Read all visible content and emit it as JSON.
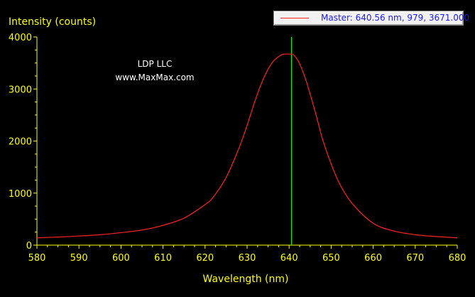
{
  "chart_data": {
    "type": "line",
    "ylabel": "Intensity (counts)",
    "xlabel": "Wavelength (nm)",
    "xlim": [
      580,
      680
    ],
    "ylim": [
      0,
      4000
    ],
    "x_ticks": [
      580,
      590,
      600,
      610,
      620,
      630,
      640,
      650,
      660,
      670,
      680
    ],
    "y_ticks": [
      0,
      1000,
      2000,
      3000,
      4000
    ],
    "annotations": [
      "LDP LLC",
      "www.MaxMax.com"
    ],
    "legend": {
      "placement": "top-right",
      "text": "Master: 640.56 nm, 979, 3671.000"
    },
    "cursor": {
      "x": 640.56
    },
    "series": [
      {
        "name": "Master",
        "x": [
          580,
          585,
          590,
          595,
          600,
          605,
          610,
          615,
          620,
          622,
          625,
          628,
          630,
          632,
          634,
          636,
          638,
          639,
          640,
          640.56,
          641,
          642,
          643,
          644,
          645,
          646,
          647,
          648,
          650,
          652,
          655,
          660,
          665,
          670,
          675,
          680
        ],
        "y": [
          140,
          155,
          175,
          200,
          240,
          290,
          380,
          520,
          780,
          930,
          1300,
          1850,
          2300,
          2800,
          3220,
          3510,
          3650,
          3670,
          3671,
          3671,
          3660,
          3560,
          3390,
          3170,
          2900,
          2620,
          2320,
          2020,
          1560,
          1180,
          800,
          420,
          270,
          200,
          165,
          140
        ]
      }
    ],
    "colors": {
      "background": "#000000",
      "axis": "#ffff00",
      "tick_label": "#ffff00",
      "annotation": "#ffffff",
      "series": "#ff2020",
      "cursor": "#00ff00"
    }
  }
}
